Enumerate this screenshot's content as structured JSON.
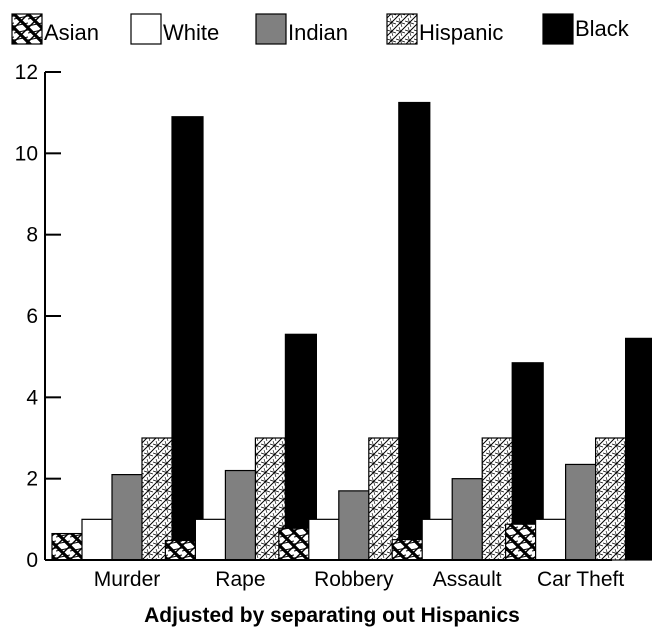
{
  "chart_data": {
    "type": "bar",
    "title": "",
    "xlabel": "Adjusted by separating out Hispanics",
    "ylabel": "",
    "ylim": [
      0,
      12
    ],
    "yticks": [
      0,
      2,
      4,
      6,
      8,
      10,
      12
    ],
    "grid": false,
    "legend_position": "top",
    "categories": [
      "Murder",
      "Rape",
      "Robbery",
      "Assault",
      "Car Theft"
    ],
    "series": [
      {
        "name": "Asian",
        "pattern": "crosshatch-bold",
        "values": [
          0.65,
          0.48,
          0.78,
          0.5,
          0.88
        ]
      },
      {
        "name": "White",
        "pattern": "solid",
        "color": "#ffffff",
        "values": [
          1.0,
          1.0,
          1.0,
          1.0,
          1.0
        ]
      },
      {
        "name": "Indian",
        "pattern": "solid",
        "color": "#808080",
        "values": [
          2.1,
          2.2,
          1.7,
          2.0,
          2.35
        ]
      },
      {
        "name": "Hispanic",
        "pattern": "crosshatch-fine",
        "values": [
          3.0,
          3.0,
          3.0,
          3.0,
          3.0
        ]
      },
      {
        "name": "Black",
        "pattern": "solid",
        "color": "#000000",
        "values": [
          10.9,
          5.55,
          11.25,
          4.85,
          5.45
        ]
      }
    ]
  }
}
